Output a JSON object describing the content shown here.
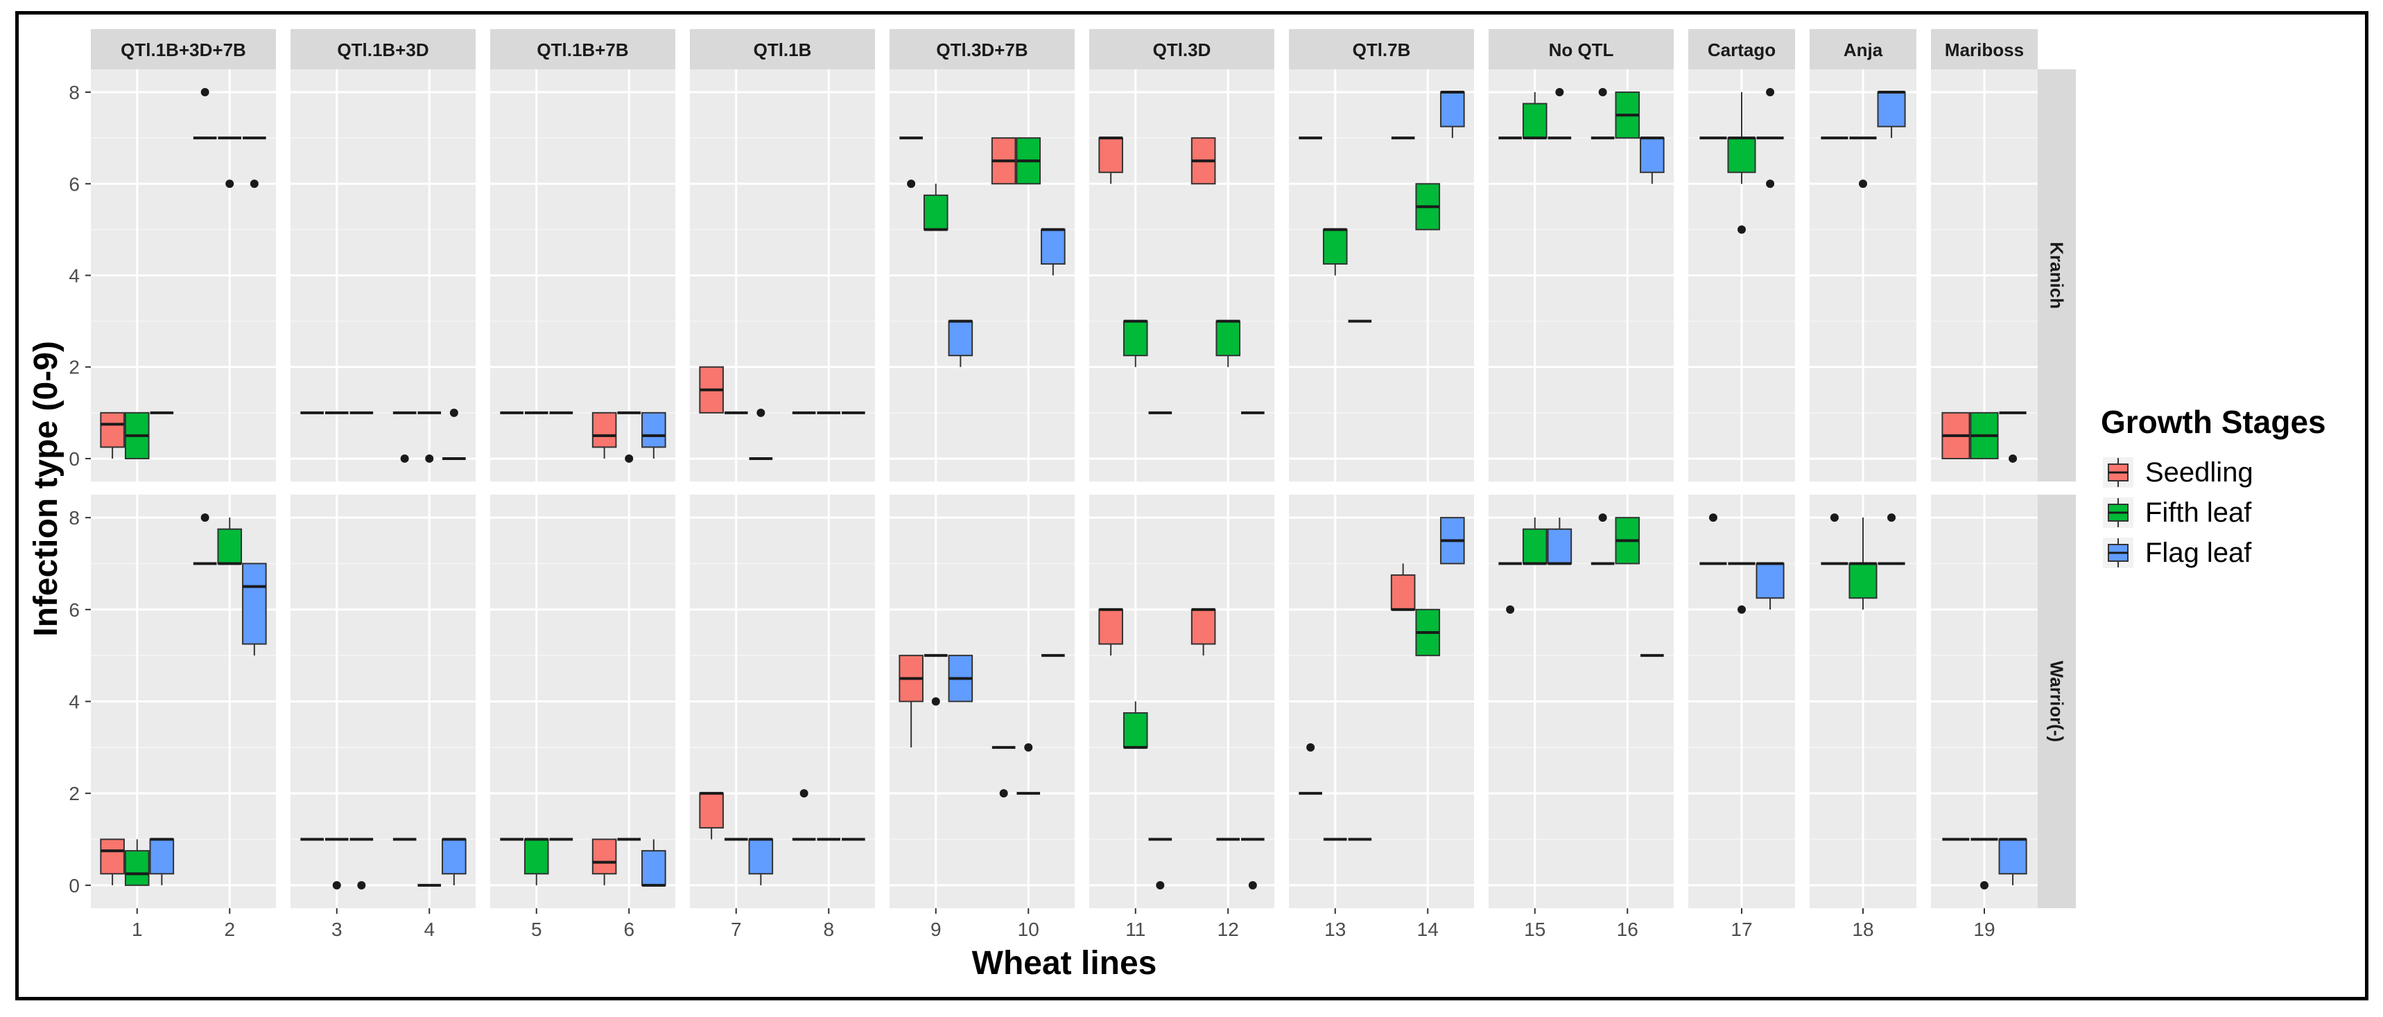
{
  "chart_data": {
    "type": "boxplot",
    "xlabel": "Wheat lines",
    "ylabel": "Infection type (0-9)",
    "ylim": [
      -0.5,
      8.5
    ],
    "yticks": [
      0,
      2,
      4,
      6,
      8
    ],
    "grid": true,
    "legend": {
      "title": "Growth Stages",
      "position": "right",
      "entries": [
        {
          "name": "Seedling",
          "color": "#F8766D"
        },
        {
          "name": "Fifth leaf",
          "color": "#00BA38"
        },
        {
          "name": "Flag leaf",
          "color": "#619CFF"
        }
      ]
    },
    "rows": [
      "Kranich",
      "Warrior(-)"
    ],
    "panels": [
      {
        "label": "QTl.1B+3D+7B",
        "lines": [
          "1",
          "2"
        ]
      },
      {
        "label": "QTl.1B+3D",
        "lines": [
          "3",
          "4"
        ]
      },
      {
        "label": "QTl.1B+7B",
        "lines": [
          "5",
          "6"
        ]
      },
      {
        "label": "QTl.1B",
        "lines": [
          "7",
          "8"
        ]
      },
      {
        "label": "QTl.3D+7B",
        "lines": [
          "9",
          "10"
        ]
      },
      {
        "label": "QTl.3D",
        "lines": [
          "11",
          "12"
        ]
      },
      {
        "label": "QTl.7B",
        "lines": [
          "13",
          "14"
        ]
      },
      {
        "label": "No QTL",
        "lines": [
          "15",
          "16"
        ]
      },
      {
        "label": "Cartago",
        "lines": [
          "17"
        ]
      },
      {
        "label": "Anja",
        "lines": [
          "18"
        ]
      },
      {
        "label": "Mariboss",
        "lines": [
          "19"
        ]
      }
    ],
    "series_stats_format": "[line, stage(0=Seedling,1=Fifth leaf,2=Flag leaf), lower whisker, Q1, median, Q3, upper whisker, outliers]",
    "data": {
      "Kranich": [
        [
          "1",
          0,
          0,
          0.25,
          0.75,
          1,
          1,
          []
        ],
        [
          "1",
          1,
          0,
          0,
          0.5,
          1,
          1,
          []
        ],
        [
          "1",
          2,
          1,
          1,
          1,
          1,
          1,
          []
        ],
        [
          "2",
          0,
          7,
          7,
          7,
          7,
          7,
          [
            8
          ]
        ],
        [
          "2",
          1,
          7,
          7,
          7,
          7,
          7,
          [
            6
          ]
        ],
        [
          "2",
          2,
          7,
          7,
          7,
          7,
          7,
          [
            6
          ]
        ],
        [
          "3",
          0,
          1,
          1,
          1,
          1,
          1,
          []
        ],
        [
          "3",
          1,
          1,
          1,
          1,
          1,
          1,
          []
        ],
        [
          "3",
          2,
          1,
          1,
          1,
          1,
          1,
          []
        ],
        [
          "4",
          0,
          1,
          1,
          1,
          1,
          1,
          [
            0
          ]
        ],
        [
          "4",
          1,
          1,
          1,
          1,
          1,
          1,
          [
            0
          ]
        ],
        [
          "4",
          2,
          0,
          0,
          0,
          0,
          0,
          [
            1
          ]
        ],
        [
          "5",
          0,
          1,
          1,
          1,
          1,
          1,
          []
        ],
        [
          "5",
          1,
          1,
          1,
          1,
          1,
          1,
          []
        ],
        [
          "5",
          2,
          1,
          1,
          1,
          1,
          1,
          []
        ],
        [
          "6",
          0,
          0,
          0.25,
          0.5,
          1,
          1,
          []
        ],
        [
          "6",
          1,
          1,
          1,
          1,
          1,
          1,
          [
            0
          ]
        ],
        [
          "6",
          2,
          0,
          0.25,
          0.5,
          1,
          1,
          []
        ],
        [
          "7",
          0,
          1,
          1,
          1.5,
          2,
          2,
          []
        ],
        [
          "7",
          1,
          1,
          1,
          1,
          1,
          1,
          []
        ],
        [
          "7",
          2,
          0,
          0,
          0,
          0,
          0,
          [
            1
          ]
        ],
        [
          "8",
          0,
          1,
          1,
          1,
          1,
          1,
          []
        ],
        [
          "8",
          1,
          1,
          1,
          1,
          1,
          1,
          []
        ],
        [
          "8",
          2,
          1,
          1,
          1,
          1,
          1,
          []
        ],
        [
          "9",
          0,
          7,
          7,
          7,
          7,
          7,
          [
            6
          ]
        ],
        [
          "9",
          1,
          5,
          5,
          5,
          5.75,
          6,
          []
        ],
        [
          "9",
          2,
          2,
          2.25,
          3,
          3,
          3,
          []
        ],
        [
          "10",
          0,
          6,
          6,
          6.5,
          7,
          7,
          []
        ],
        [
          "10",
          1,
          6,
          6,
          6.5,
          7,
          7,
          []
        ],
        [
          "10",
          2,
          4,
          4.25,
          5,
          5,
          5,
          []
        ],
        [
          "11",
          0,
          6,
          6.25,
          7,
          7,
          7,
          []
        ],
        [
          "11",
          1,
          2,
          2.25,
          3,
          3,
          3,
          []
        ],
        [
          "11",
          2,
          1,
          1,
          1,
          1,
          1,
          []
        ],
        [
          "12",
          0,
          6,
          6,
          6.5,
          7,
          7,
          []
        ],
        [
          "12",
          1,
          2,
          2.25,
          3,
          3,
          3,
          []
        ],
        [
          "12",
          2,
          1,
          1,
          1,
          1,
          1,
          []
        ],
        [
          "13",
          0,
          7,
          7,
          7,
          7,
          7,
          []
        ],
        [
          "13",
          1,
          4,
          4.25,
          5,
          5,
          5,
          []
        ],
        [
          "13",
          2,
          3,
          3,
          3,
          3,
          3,
          []
        ],
        [
          "14",
          0,
          7,
          7,
          7,
          7,
          7,
          []
        ],
        [
          "14",
          1,
          5,
          5,
          5.5,
          6,
          6,
          []
        ],
        [
          "14",
          2,
          7,
          7.25,
          8,
          8,
          8,
          []
        ],
        [
          "15",
          0,
          7,
          7,
          7,
          7,
          7,
          []
        ],
        [
          "15",
          1,
          7,
          7,
          7,
          7.75,
          8,
          []
        ],
        [
          "15",
          2,
          7,
          7,
          7,
          7,
          7,
          [
            8
          ]
        ],
        [
          "16",
          0,
          7,
          7,
          7,
          7,
          7,
          [
            8
          ]
        ],
        [
          "16",
          1,
          7,
          7,
          7.5,
          8,
          8,
          []
        ],
        [
          "16",
          2,
          6,
          6.25,
          7,
          7,
          7,
          []
        ],
        [
          "17",
          0,
          7,
          7,
          7,
          7,
          7,
          []
        ],
        [
          "17",
          1,
          6,
          6.25,
          7,
          7,
          8,
          [
            5
          ]
        ],
        [
          "17",
          2,
          7,
          7,
          7,
          7,
          7,
          [
            8,
            6
          ]
        ],
        [
          "18",
          0,
          7,
          7,
          7,
          7,
          7,
          []
        ],
        [
          "18",
          1,
          7,
          7,
          7,
          7,
          7,
          [
            6
          ]
        ],
        [
          "18",
          2,
          7,
          7.25,
          8,
          8,
          8,
          []
        ],
        [
          "19",
          0,
          0,
          0,
          0.5,
          1,
          1,
          []
        ],
        [
          "19",
          1,
          0,
          0,
          0.5,
          1,
          1,
          []
        ],
        [
          "19",
          2,
          1,
          1,
          1,
          1,
          1,
          [
            0
          ]
        ]
      ],
      "Warrior(-)": [
        [
          "1",
          0,
          0,
          0.25,
          0.75,
          1,
          1,
          []
        ],
        [
          "1",
          1,
          0,
          0,
          0.25,
          0.75,
          1,
          []
        ],
        [
          "1",
          2,
          0,
          0.25,
          1,
          1,
          1,
          []
        ],
        [
          "2",
          0,
          7,
          7,
          7,
          7,
          7,
          [
            8
          ]
        ],
        [
          "2",
          1,
          7,
          7,
          7,
          7.75,
          8,
          []
        ],
        [
          "2",
          2,
          5,
          5.25,
          6.5,
          7,
          7,
          []
        ],
        [
          "3",
          0,
          1,
          1,
          1,
          1,
          1,
          []
        ],
        [
          "3",
          1,
          1,
          1,
          1,
          1,
          1,
          [
            0
          ]
        ],
        [
          "3",
          2,
          1,
          1,
          1,
          1,
          1,
          [
            0
          ]
        ],
        [
          "4",
          0,
          1,
          1,
          1,
          1,
          1,
          []
        ],
        [
          "4",
          1,
          0,
          0,
          0,
          0,
          0,
          []
        ],
        [
          "4",
          2,
          0,
          0.25,
          1,
          1,
          1,
          []
        ],
        [
          "5",
          0,
          1,
          1,
          1,
          1,
          1,
          []
        ],
        [
          "5",
          1,
          0,
          0.25,
          1,
          1,
          1,
          []
        ],
        [
          "5",
          2,
          1,
          1,
          1,
          1,
          1,
          []
        ],
        [
          "6",
          0,
          0,
          0.25,
          0.5,
          1,
          1,
          []
        ],
        [
          "6",
          1,
          1,
          1,
          1,
          1,
          1,
          []
        ],
        [
          "6",
          2,
          0,
          0,
          0,
          0.75,
          1,
          []
        ],
        [
          "7",
          0,
          1,
          1.25,
          2,
          2,
          2,
          []
        ],
        [
          "7",
          1,
          1,
          1,
          1,
          1,
          1,
          []
        ],
        [
          "7",
          2,
          0,
          0.25,
          1,
          1,
          1,
          []
        ],
        [
          "8",
          0,
          1,
          1,
          1,
          1,
          1,
          [
            2
          ]
        ],
        [
          "8",
          1,
          1,
          1,
          1,
          1,
          1,
          []
        ],
        [
          "8",
          2,
          1,
          1,
          1,
          1,
          1,
          []
        ],
        [
          "9",
          0,
          3,
          4,
          4.5,
          5,
          5,
          []
        ],
        [
          "9",
          1,
          5,
          5,
          5,
          5,
          5,
          [
            4
          ]
        ],
        [
          "9",
          2,
          4,
          4,
          4.5,
          5,
          5,
          []
        ],
        [
          "10",
          0,
          3,
          3,
          3,
          3,
          3,
          [
            2
          ]
        ],
        [
          "10",
          1,
          2,
          2,
          2,
          2,
          2,
          [
            3
          ]
        ],
        [
          "10",
          2,
          5,
          5,
          5,
          5,
          5,
          []
        ],
        [
          "11",
          0,
          5,
          5.25,
          6,
          6,
          6,
          []
        ],
        [
          "11",
          1,
          3,
          3,
          3,
          3.75,
          4,
          []
        ],
        [
          "11",
          2,
          1,
          1,
          1,
          1,
          1,
          [
            0
          ]
        ],
        [
          "12",
          0,
          5,
          5.25,
          6,
          6,
          6,
          []
        ],
        [
          "12",
          1,
          1,
          1,
          1,
          1,
          1,
          []
        ],
        [
          "12",
          2,
          1,
          1,
          1,
          1,
          1,
          [
            0
          ]
        ],
        [
          "13",
          0,
          2,
          2,
          2,
          2,
          2,
          [
            3
          ]
        ],
        [
          "13",
          1,
          1,
          1,
          1,
          1,
          1,
          []
        ],
        [
          "13",
          2,
          1,
          1,
          1,
          1,
          1,
          []
        ],
        [
          "14",
          0,
          6,
          6,
          6,
          6.75,
          7,
          []
        ],
        [
          "14",
          1,
          5,
          5,
          5.5,
          6,
          6,
          []
        ],
        [
          "14",
          2,
          7,
          7,
          7.5,
          8,
          8,
          []
        ],
        [
          "15",
          0,
          7,
          7,
          7,
          7,
          7,
          [
            6
          ]
        ],
        [
          "15",
          1,
          7,
          7,
          7,
          7.75,
          8,
          []
        ],
        [
          "15",
          2,
          7,
          7,
          7,
          7.75,
          8,
          []
        ],
        [
          "16",
          0,
          7,
          7,
          7,
          7,
          7,
          [
            8
          ]
        ],
        [
          "16",
          1,
          7,
          7,
          7.5,
          8,
          8,
          []
        ],
        [
          "16",
          2,
          5,
          5,
          5,
          5,
          5,
          []
        ],
        [
          "17",
          0,
          7,
          7,
          7,
          7,
          7,
          [
            8
          ]
        ],
        [
          "17",
          1,
          7,
          7,
          7,
          7,
          7,
          [
            6
          ]
        ],
        [
          "17",
          2,
          6,
          6.25,
          7,
          7,
          7,
          []
        ],
        [
          "18",
          0,
          7,
          7,
          7,
          7,
          7,
          [
            8
          ]
        ],
        [
          "18",
          1,
          6,
          6.25,
          7,
          7,
          8,
          []
        ],
        [
          "18",
          2,
          7,
          7,
          7,
          7,
          7,
          [
            8
          ]
        ],
        [
          "19",
          0,
          1,
          1,
          1,
          1,
          1,
          []
        ],
        [
          "19",
          1,
          1,
          1,
          1,
          1,
          1,
          [
            0
          ]
        ],
        [
          "19",
          2,
          0,
          0.25,
          1,
          1,
          1,
          []
        ]
      ]
    }
  }
}
